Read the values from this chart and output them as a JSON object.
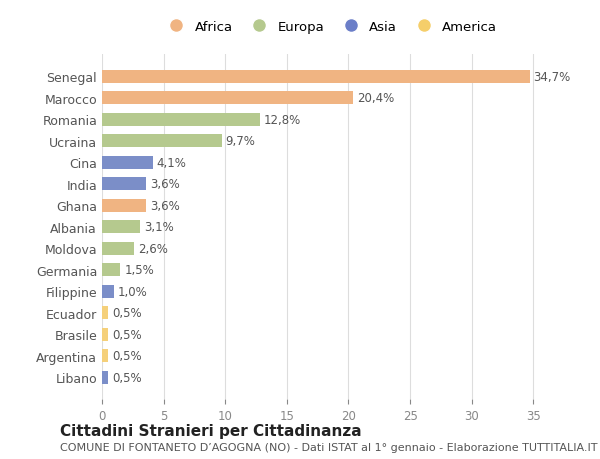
{
  "countries": [
    "Senegal",
    "Marocco",
    "Romania",
    "Ucraina",
    "Cina",
    "India",
    "Ghana",
    "Albania",
    "Moldova",
    "Germania",
    "Filippine",
    "Ecuador",
    "Brasile",
    "Argentina",
    "Libano"
  ],
  "values": [
    34.7,
    20.4,
    12.8,
    9.7,
    4.1,
    3.6,
    3.6,
    3.1,
    2.6,
    1.5,
    1.0,
    0.5,
    0.5,
    0.5,
    0.5
  ],
  "labels": [
    "34,7%",
    "20,4%",
    "12,8%",
    "9,7%",
    "4,1%",
    "3,6%",
    "3,6%",
    "3,1%",
    "2,6%",
    "1,5%",
    "1,0%",
    "0,5%",
    "0,5%",
    "0,5%",
    "0,5%"
  ],
  "continents": [
    "Africa",
    "Africa",
    "Europa",
    "Europa",
    "Asia",
    "Asia",
    "Africa",
    "Europa",
    "Europa",
    "Europa",
    "Asia",
    "America",
    "America",
    "America",
    "Asia"
  ],
  "colors": {
    "Africa": "#F0B482",
    "Europa": "#B5C98E",
    "Asia": "#7B8EC8",
    "America": "#F5D07A"
  },
  "legend_colors": {
    "Africa": "#F0B482",
    "Europa": "#B5C98E",
    "Asia": "#6B7EC8",
    "America": "#F5CE6A"
  },
  "title": "Cittadini Stranieri per Cittadinanza",
  "subtitle": "COMUNE DI FONTANETO D’AGOGNA (NO) - Dati ISTAT al 1° gennaio - Elaborazione TUTTITALIA.IT",
  "xlim": [
    0,
    37
  ],
  "xticks": [
    0,
    5,
    10,
    15,
    20,
    25,
    30,
    35
  ],
  "background_color": "#ffffff",
  "bar_height": 0.6,
  "label_fontsize": 8.5,
  "title_fontsize": 11,
  "subtitle_fontsize": 8
}
